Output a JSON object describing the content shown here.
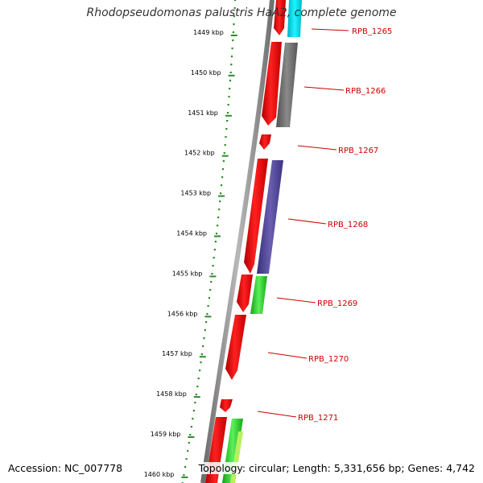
{
  "title": "Rhodopseudomonas palustris HaA2, complete genome",
  "accession": "Accession: NC_007778",
  "summary": "Topology: circular; Length: 5,331,656 bp; Genes: 4,742",
  "ticks": [
    {
      "label": "1449 kbp"
    },
    {
      "label": "1450 kbp"
    },
    {
      "label": "1451 kbp"
    },
    {
      "label": "1452 kbp"
    },
    {
      "label": "1453 kbp"
    },
    {
      "label": "1454 kbp"
    },
    {
      "label": "1455 kbp"
    },
    {
      "label": "1456 kbp"
    },
    {
      "label": "1457 kbp"
    },
    {
      "label": "1458 kbp"
    },
    {
      "label": "1459 kbp"
    },
    {
      "label": "1460 kbp"
    }
  ],
  "genes": [
    {
      "label": "RPB_1265",
      "cog_color": "#00e5ee"
    },
    {
      "label": "RPB_1266",
      "cog_color": "#666666"
    },
    {
      "label": "RPB_1267",
      "cog_color": null
    },
    {
      "label": "RPB_1268",
      "cog_color": "#4b4191"
    },
    {
      "label": "RPB_1269",
      "cog_color": "#22cc22"
    },
    {
      "label": "RPB_1270",
      "cog_color": null
    },
    {
      "label": "RPB_1271",
      "cog_color": "#66dd22"
    }
  ],
  "colors": {
    "backbone": "#888888",
    "cds": "#ff0000",
    "tick": "#2e8b2e",
    "gene_label": "#cc0000"
  }
}
